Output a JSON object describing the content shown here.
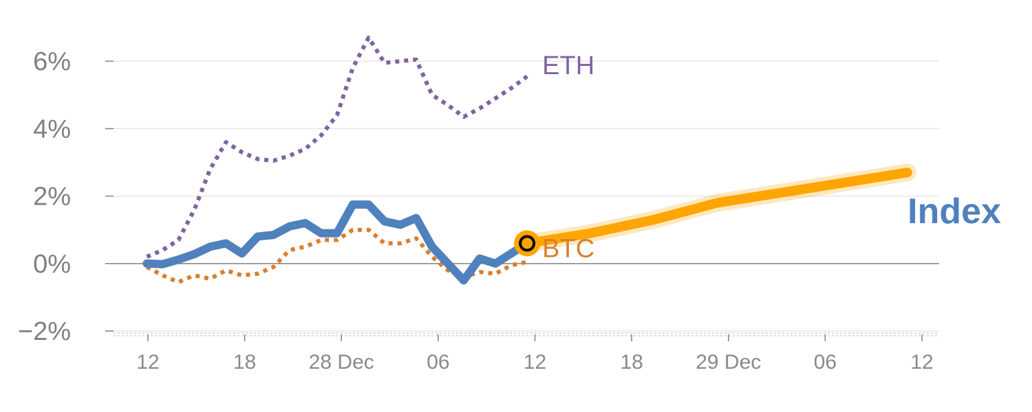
{
  "chart_data": {
    "type": "line",
    "title": "",
    "xlabel": "",
    "ylabel": "",
    "x_ticks": [
      "12",
      "18",
      "28 Dec",
      "06",
      "12",
      "18",
      "29 Dec",
      "06",
      "12"
    ],
    "y_ticks": [
      "−2%",
      "0%",
      "2%",
      "4%",
      "6%"
    ],
    "y_tick_values": [
      -2,
      0,
      2,
      4,
      6
    ],
    "ylim": [
      -2.1,
      7.0
    ],
    "x_range": [
      -2.1,
      50.0
    ],
    "grid": true,
    "legend": "labels placed at line ends",
    "series": [
      {
        "name": "ETH",
        "style": "dotted",
        "color": "#8064a2",
        "x": [
          0,
          1,
          2,
          3,
          4,
          5,
          6,
          7,
          8,
          9,
          10,
          11,
          12,
          13,
          14,
          15,
          16,
          17,
          18,
          19,
          20,
          21,
          22,
          23,
          24
        ],
        "y": [
          0.2,
          0.4,
          0.7,
          1.6,
          2.8,
          3.6,
          3.3,
          3.1,
          3.05,
          3.2,
          3.4,
          3.8,
          4.4,
          5.8,
          6.7,
          5.95,
          6.0,
          6.05,
          5.0,
          4.7,
          4.35,
          4.6,
          4.9,
          5.2,
          5.55
        ]
      },
      {
        "name": "BTC",
        "style": "dotted",
        "color": "#d97f30",
        "x": [
          0,
          1,
          2,
          3,
          4,
          5,
          6,
          7,
          8,
          9,
          10,
          11,
          12,
          13,
          14,
          15,
          16,
          17,
          18,
          19,
          20,
          21,
          22,
          23,
          24
        ],
        "y": [
          -0.1,
          -0.35,
          -0.55,
          -0.35,
          -0.45,
          -0.2,
          -0.35,
          -0.3,
          -0.1,
          0.4,
          0.5,
          0.7,
          0.7,
          1.0,
          1.0,
          0.6,
          0.6,
          0.75,
          0.2,
          -0.2,
          -0.4,
          -0.25,
          -0.3,
          -0.05,
          0.05
        ]
      },
      {
        "name": "Index",
        "style": "solid",
        "color": "#4f81bd",
        "x": [
          0,
          1,
          2,
          3,
          4,
          5,
          6,
          7,
          8,
          9,
          10,
          11,
          12,
          13,
          14,
          15,
          16,
          17,
          18,
          19,
          20,
          21,
          22,
          23,
          24
        ],
        "y": [
          0.0,
          -0.02,
          0.12,
          0.28,
          0.5,
          0.6,
          0.3,
          0.8,
          0.85,
          1.1,
          1.2,
          0.9,
          0.9,
          1.75,
          1.75,
          1.25,
          1.15,
          1.35,
          0.5,
          0.0,
          -0.5,
          0.15,
          0.0,
          0.3,
          0.6
        ]
      },
      {
        "name": "Index forecast",
        "style": "thick-highlight",
        "color": "#ffa500",
        "x": [
          24,
          28,
          32,
          36,
          40,
          44,
          48
        ],
        "y": [
          0.6,
          0.9,
          1.3,
          1.8,
          2.1,
          2.4,
          2.7
        ]
      }
    ],
    "highlight_point": {
      "series": "Index",
      "x": 24,
      "y": 0.6
    },
    "labels": {
      "eth": "ETH",
      "btc": "BTC",
      "index": "Index"
    },
    "colors": {
      "axis": "#7f7f7f",
      "grid": "#e6e6e6",
      "tick_text": "#808080",
      "index": "#4f81bd",
      "eth": "#8064a2",
      "btc": "#d97f30",
      "forecast": "#ffa500"
    }
  }
}
